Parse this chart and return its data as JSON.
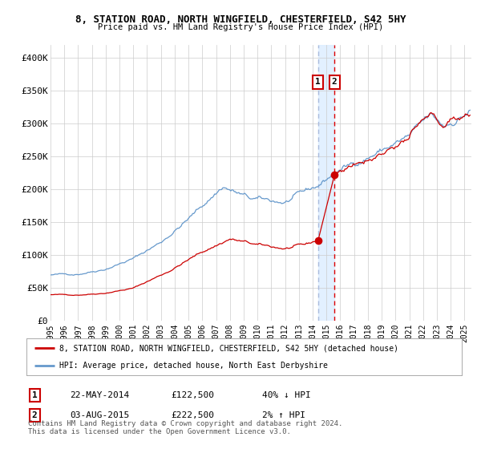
{
  "title": "8, STATION ROAD, NORTH WINGFIELD, CHESTERFIELD, S42 5HY",
  "subtitle": "Price paid vs. HM Land Registry's House Price Index (HPI)",
  "ylabel_ticks": [
    "£0",
    "£50K",
    "£100K",
    "£150K",
    "£200K",
    "£250K",
    "£300K",
    "£350K",
    "£400K"
  ],
  "ytick_vals": [
    0,
    50000,
    100000,
    150000,
    200000,
    250000,
    300000,
    350000,
    400000
  ],
  "ylim": [
    0,
    420000
  ],
  "xlim_start": 1995.0,
  "xlim_end": 2025.5,
  "line1_color": "#cc0000",
  "line2_color": "#6699cc",
  "marker_color": "#cc0000",
  "vline1_x": 2014.39,
  "vline2_x": 2015.58,
  "point1_x": 2014.39,
  "point1_y": 122500,
  "point2_x": 2015.58,
  "point2_y": 222500,
  "legend_label1": "8, STATION ROAD, NORTH WINGFIELD, CHESTERFIELD, S42 5HY (detached house)",
  "legend_label2": "HPI: Average price, detached house, North East Derbyshire",
  "table_row1": [
    "1",
    "22-MAY-2014",
    "£122,500",
    "40% ↓ HPI"
  ],
  "table_row2": [
    "2",
    "03-AUG-2015",
    "£222,500",
    "2% ↑ HPI"
  ],
  "footer": "Contains HM Land Registry data © Crown copyright and database right 2024.\nThis data is licensed under the Open Government Licence v3.0.",
  "xtick_years": [
    1995,
    1996,
    1997,
    1998,
    1999,
    2000,
    2001,
    2002,
    2003,
    2004,
    2005,
    2006,
    2007,
    2008,
    2009,
    2010,
    2011,
    2012,
    2013,
    2014,
    2015,
    2016,
    2017,
    2018,
    2019,
    2020,
    2021,
    2022,
    2023,
    2024,
    2025
  ],
  "background_color": "#ffffff",
  "grid_color": "#cccccc",
  "vspan_color": "#ddeeff",
  "vline1_color": "#aabbdd",
  "vline2_color": "#dd0000",
  "hpi_waypoints_x": [
    1995.0,
    1997.0,
    1999.0,
    2001.0,
    2003.0,
    2005.0,
    2007.5,
    2008.5,
    2009.5,
    2012.0,
    2014.39,
    2015.58,
    2017.0,
    2019.0,
    2021.0,
    2022.5,
    2023.5,
    2025.4
  ],
  "hpi_waypoints_y": [
    70000,
    72000,
    80000,
    95000,
    120000,
    155000,
    205000,
    195000,
    185000,
    180000,
    205000,
    225000,
    240000,
    260000,
    280000,
    310000,
    295000,
    320000
  ],
  "pp_waypoints_x": [
    1995.0,
    1997.0,
    1999.0,
    2001.0,
    2003.5,
    2006.0,
    2008.0,
    2010.0,
    2012.0,
    2013.5,
    2014.39,
    2015.58,
    2017.0,
    2019.0,
    2021.0,
    2022.5,
    2023.5,
    2025.4
  ],
  "pp_waypoints_y": [
    40000,
    40000,
    43000,
    50000,
    75000,
    105000,
    125000,
    115000,
    110000,
    115000,
    122500,
    222500,
    240000,
    260000,
    280000,
    310000,
    295000,
    320000
  ]
}
